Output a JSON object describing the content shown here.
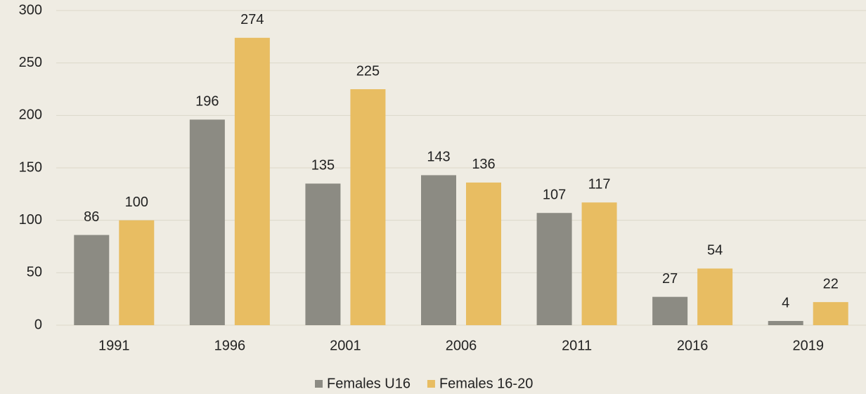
{
  "chart_data": {
    "type": "bar",
    "categories": [
      "1991",
      "1996",
      "2001",
      "2006",
      "2011",
      "2016",
      "2019"
    ],
    "series": [
      {
        "name": "Females U16",
        "color": "#8c8b83",
        "values": [
          86,
          196,
          135,
          143,
          107,
          27,
          4
        ]
      },
      {
        "name": "Females 16-20",
        "color": "#e8bd62",
        "values": [
          100,
          274,
          225,
          136,
          117,
          54,
          22
        ]
      }
    ],
    "ylim": [
      0,
      300
    ],
    "yticks": [
      0,
      50,
      100,
      150,
      200,
      250,
      300
    ],
    "grid": true,
    "legend": "bottom"
  }
}
